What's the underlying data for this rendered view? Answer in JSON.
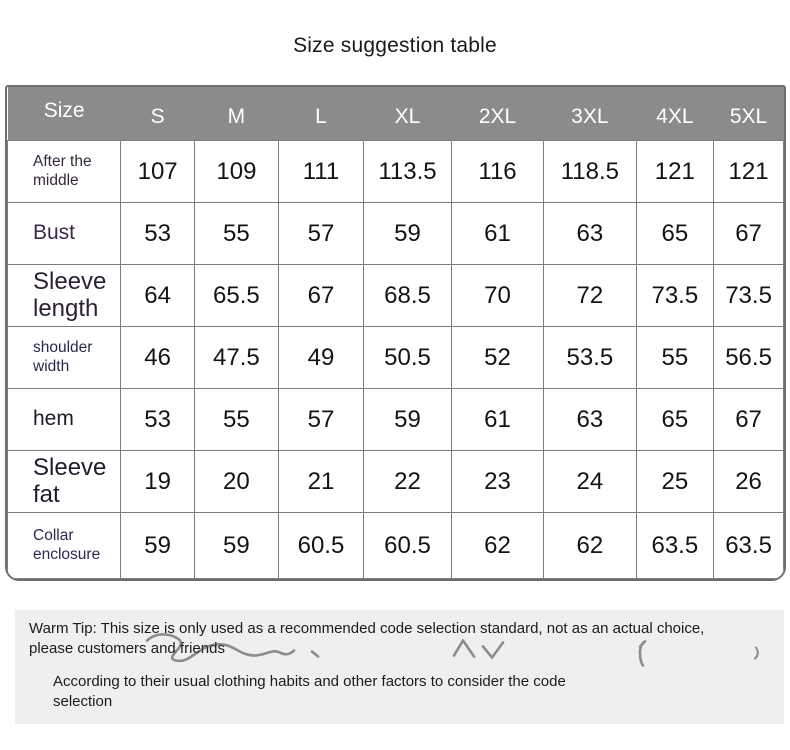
{
  "page": {
    "title": "Size suggestion table",
    "background": "#ffffff"
  },
  "table": {
    "corner_label": "Size",
    "size_columns": [
      "S",
      "M",
      "L",
      "XL",
      "2XL",
      "3XL",
      "4XL",
      "5XL"
    ],
    "header_bg": "#8b8b8b",
    "header_text_color": "#ffffff",
    "grid_line_color": "#7d7d7d",
    "rows": [
      {
        "label": "After the middle",
        "label_size": "sm",
        "label_color": "#32283a",
        "values": [
          "107",
          "109",
          "111",
          "113.5",
          "116",
          "118.5",
          "121",
          "121"
        ]
      },
      {
        "label": "Bust",
        "label_size": "md",
        "label_color": "#3e2749",
        "values": [
          "53",
          "55",
          "57",
          "59",
          "61",
          "63",
          "65",
          "67"
        ]
      },
      {
        "label": "Sleeve length",
        "label_size": "lg",
        "label_color": "#2a1f33",
        "values": [
          "64",
          "65.5",
          "67",
          "68.5",
          "70",
          "72",
          "73.5",
          "73.5"
        ]
      },
      {
        "label": "shoulder width",
        "label_size": "sm",
        "label_color": "#262a4e",
        "values": [
          "46",
          "47.5",
          "49",
          "50.5",
          "52",
          "53.5",
          "55",
          "56.5"
        ]
      },
      {
        "label": "hem",
        "label_size": "md",
        "label_color": "#1d1d26",
        "values": [
          "53",
          "55",
          "57",
          "59",
          "61",
          "63",
          "65",
          "67"
        ]
      },
      {
        "label": "Sleeve fat",
        "label_size": "lg",
        "label_color": "#201c2b",
        "values": [
          "19",
          "20",
          "21",
          "22",
          "23",
          "24",
          "25",
          "26"
        ]
      },
      {
        "label": "Collar enclosure",
        "label_size": "sm",
        "label_color": "#2c2b50",
        "values": [
          "59",
          "59",
          "60.5",
          "60.5",
          "62",
          "62",
          "63.5",
          "63.5"
        ]
      }
    ]
  },
  "warm_tip": {
    "background": "#efefef",
    "line1": "Warm Tip: This size is only used as a recommended code selection standard, not as an actual choice,",
    "line2": "please customers and friends",
    "line3": "According to their usual clothing habits and other factors to consider the code",
    "line4": "selection"
  },
  "chart_data": {
    "type": "table",
    "title": "Size suggestion table",
    "columns": [
      "Size",
      "S",
      "M",
      "L",
      "XL",
      "2XL",
      "3XL",
      "4XL",
      "5XL"
    ],
    "rows": [
      [
        "After the middle",
        107,
        109,
        111,
        113.5,
        116,
        118.5,
        121,
        121
      ],
      [
        "Bust",
        53,
        55,
        57,
        59,
        61,
        63,
        65,
        67
      ],
      [
        "Sleeve length",
        64,
        65.5,
        67,
        68.5,
        70,
        72,
        73.5,
        73.5
      ],
      [
        "shoulder width",
        46,
        47.5,
        49,
        50.5,
        52,
        53.5,
        55,
        56.5
      ],
      [
        "hem",
        53,
        55,
        57,
        59,
        61,
        63,
        65,
        67
      ],
      [
        "Sleeve fat",
        19,
        20,
        21,
        22,
        23,
        24,
        25,
        26
      ],
      [
        "Collar enclosure",
        59,
        59,
        60.5,
        60.5,
        62,
        62,
        63.5,
        63.5
      ]
    ],
    "notes": [
      "Warm Tip: This size is only used as a recommended code selection standard, not as an actual choice, please customers and friends",
      "According to their usual clothing habits and other factors to consider the code selection"
    ]
  }
}
